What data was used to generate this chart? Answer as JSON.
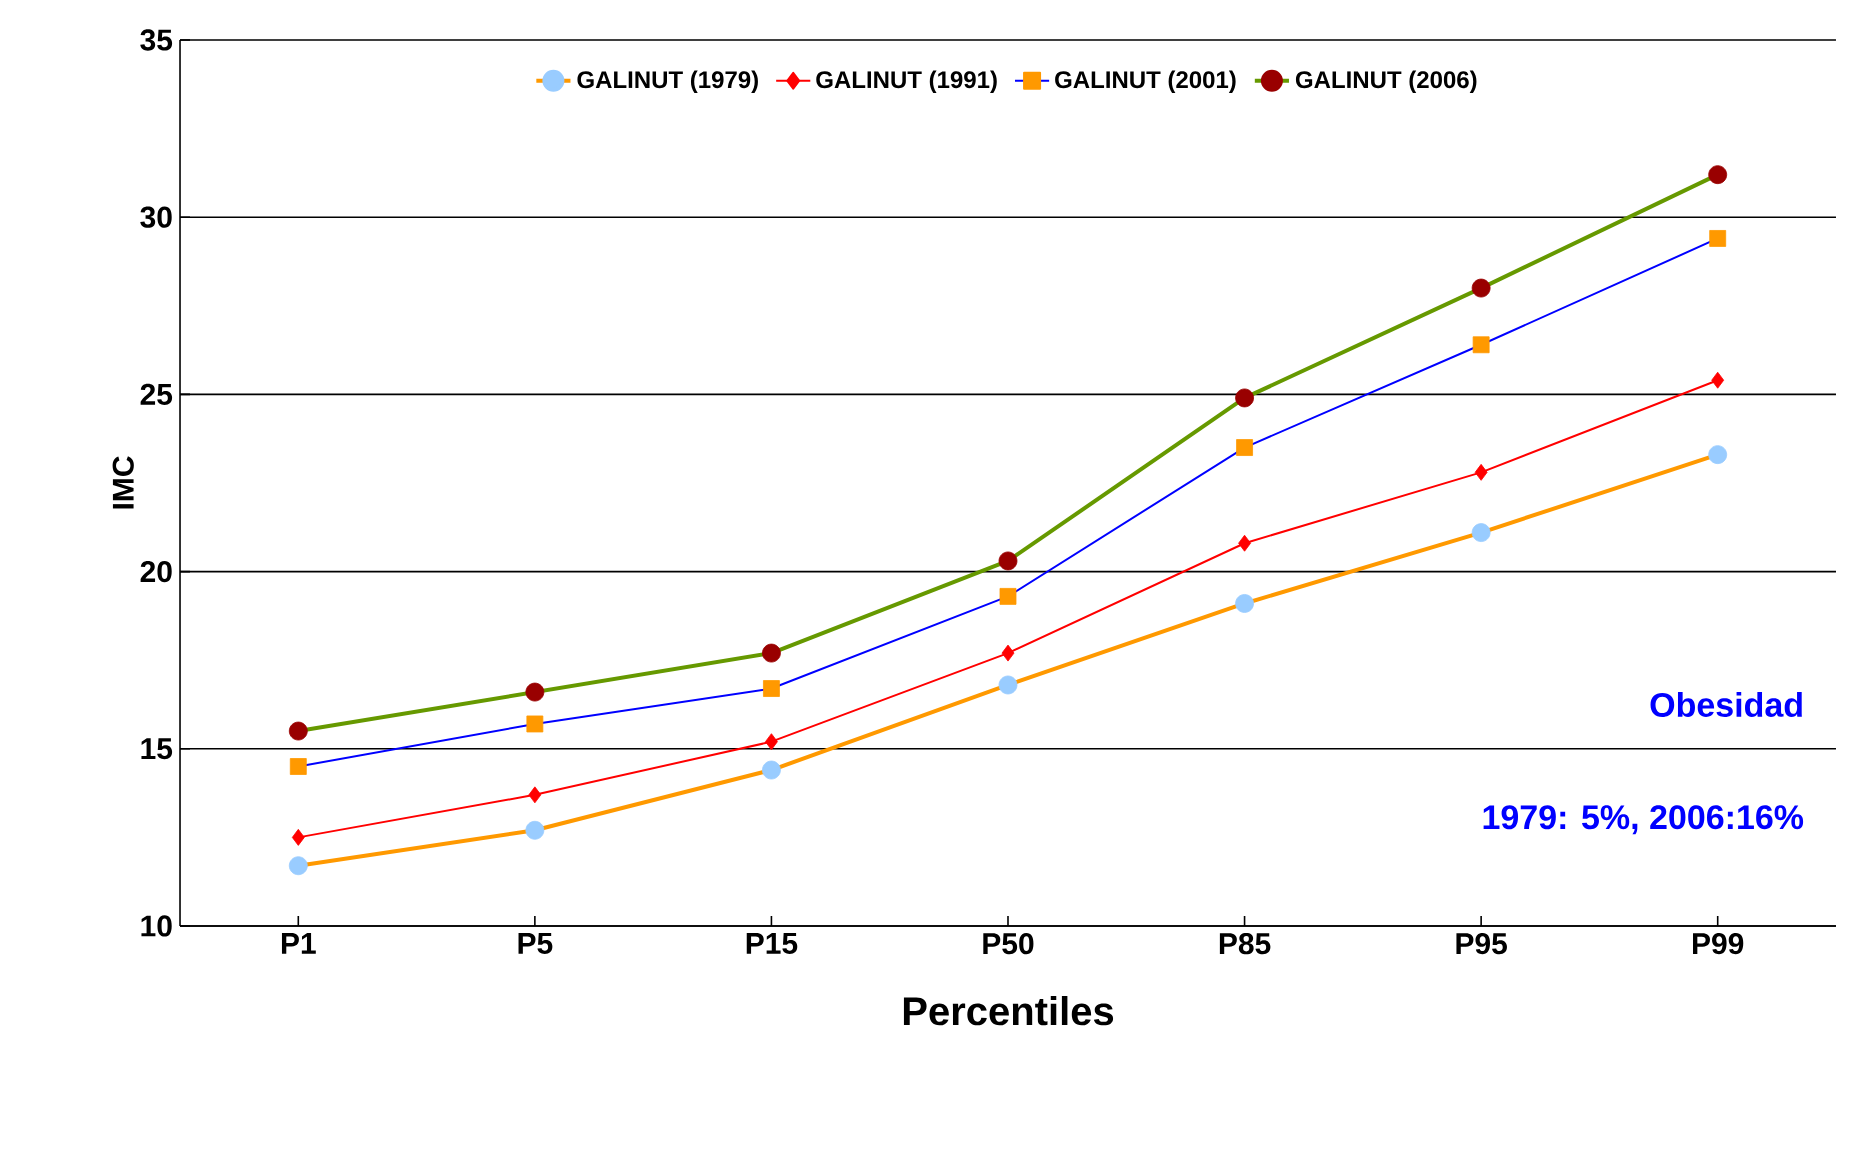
{
  "chart_data": {
    "type": "line",
    "xlabel": "Percentiles",
    "ylabel": "IMC",
    "categories": [
      "P1",
      "P5",
      "P15",
      "P50",
      "P85",
      "P95",
      "P99"
    ],
    "series": [
      {
        "name": "GALINUT (1979)",
        "color": "#ff9900",
        "marker": "circle",
        "colors": [
          "#99ccff",
          "#99ccff",
          "#99ccff",
          "#99ccff",
          "#99ccff",
          "#99ccff",
          "#99ccff"
        ],
        "values": [
          11.7,
          12.7,
          14.4,
          16.8,
          19.1,
          21.1,
          23.3
        ]
      },
      {
        "name": "GALINUT (1991)",
        "color": "#ff0000",
        "marker": "diamond",
        "colors": [
          "#ff0000",
          "#ff0000",
          "#ff0000",
          "#ff0000",
          "#ff0000",
          "#ff0000",
          "#ff0000"
        ],
        "values": [
          12.5,
          13.7,
          15.2,
          17.7,
          20.8,
          22.8,
          25.4
        ]
      },
      {
        "name": "GALINUT (2001)",
        "color": "#0000ff",
        "marker": "square",
        "colors": [
          "#ff9900",
          "#ff9900",
          "#ff9900",
          "#ff9900",
          "#ff9900",
          "#ff9900",
          "#ff9900"
        ],
        "values": [
          14.5,
          15.7,
          16.7,
          19.3,
          23.5,
          26.4,
          29.4
        ]
      },
      {
        "name": "GALINUT (2006)",
        "color": "#669900",
        "marker": "circle",
        "colors": [
          "#990000",
          "#990000",
          "#990000",
          "#990000",
          "#990000",
          "#990000",
          "#990000"
        ],
        "values": [
          15.5,
          16.6,
          17.7,
          20.3,
          24.9,
          28.0,
          31.2
        ]
      }
    ],
    "ylim": [
      10,
      35
    ],
    "yticks": [
      10,
      15,
      20,
      25,
      30,
      35
    ],
    "grid": "y",
    "legend": "top",
    "annotations": [
      "Obesidad",
      "1979: 5%, 2006:16%"
    ]
  }
}
